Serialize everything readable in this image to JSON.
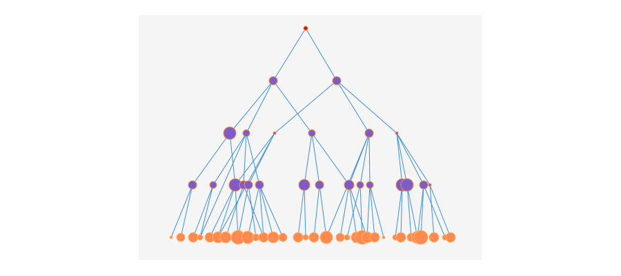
{
  "colors": {
    "background": "#ffffff",
    "panel": "#f5f5f5",
    "link": "#3b8fdb",
    "root_fill": "#c81e00",
    "root_stroke": "#ff8a3d",
    "inner_fill": "#7c5cc9",
    "inner_stroke": "#ff8a3d",
    "leaf_fill": "#ff8a50",
    "leaf_stroke": "#ffb36b"
  },
  "tree": {
    "levels": 5,
    "nodes": [
      {
        "id": "r",
        "level": 0,
        "rank": 0,
        "size": 3,
        "kind": "root"
      },
      {
        "id": "a1",
        "level": 1,
        "rank": 0,
        "size": 6,
        "kind": "inner",
        "parents": [
          "r"
        ]
      },
      {
        "id": "a2",
        "level": 1,
        "rank": 1,
        "size": 6,
        "kind": "inner",
        "parents": [
          "r"
        ]
      },
      {
        "id": "b1",
        "level": 2,
        "rank": 0,
        "size": 9,
        "kind": "inner",
        "parents": [
          "a1"
        ]
      },
      {
        "id": "b2",
        "level": 2,
        "rank": 1,
        "size": 5,
        "kind": "inner",
        "parents": [
          "a1"
        ]
      },
      {
        "id": "b3",
        "level": 2,
        "rank": 2,
        "size": 2,
        "kind": "inner",
        "parents": [
          "a2"
        ]
      },
      {
        "id": "b4",
        "level": 2,
        "rank": 3,
        "size": 5,
        "kind": "inner",
        "parents": [
          "a1"
        ]
      },
      {
        "id": "b5",
        "level": 2,
        "rank": 4,
        "size": 6,
        "kind": "inner",
        "parents": [
          "a2"
        ]
      },
      {
        "id": "b6",
        "level": 2,
        "rank": 5,
        "size": 2,
        "kind": "inner",
        "parents": [
          "a2"
        ]
      },
      {
        "id": "c1",
        "level": 3,
        "rank": 0,
        "size": 6,
        "kind": "inner",
        "parents": [
          "b1"
        ]
      },
      {
        "id": "c2",
        "level": 3,
        "rank": 1,
        "size": 5,
        "kind": "inner",
        "parents": [
          "b2"
        ]
      },
      {
        "id": "c3",
        "level": 3,
        "rank": 2,
        "size": 9,
        "kind": "inner",
        "parents": [
          "b1",
          "b3"
        ]
      },
      {
        "id": "c4",
        "level": 3,
        "rank": 3,
        "size": 6,
        "kind": "inner",
        "parents": [
          "b2"
        ]
      },
      {
        "id": "c5",
        "level": 3,
        "rank": 4,
        "size": 6,
        "kind": "inner",
        "parents": [
          "b3"
        ]
      },
      {
        "id": "c6",
        "level": 3,
        "rank": 5,
        "size": 6,
        "kind": "inner",
        "parents": [
          "b2"
        ]
      },
      {
        "id": "c7",
        "level": 3,
        "rank": 6,
        "size": 8,
        "kind": "inner",
        "parents": [
          "b4"
        ]
      },
      {
        "id": "c8",
        "level": 3,
        "rank": 7,
        "size": 6,
        "kind": "inner",
        "parents": [
          "b4"
        ]
      },
      {
        "id": "c9",
        "level": 3,
        "rank": 8,
        "size": 7,
        "kind": "inner",
        "parents": [
          "b5",
          "b4"
        ]
      },
      {
        "id": "c10",
        "level": 3,
        "rank": 9,
        "size": 5,
        "kind": "inner",
        "parents": [
          "b5"
        ]
      },
      {
        "id": "c11",
        "level": 3,
        "rank": 10,
        "size": 5,
        "kind": "inner",
        "parents": [
          "b5"
        ]
      },
      {
        "id": "c12",
        "level": 3,
        "rank": 11,
        "size": 9,
        "kind": "inner",
        "parents": [
          "b6"
        ]
      },
      {
        "id": "c13",
        "level": 3,
        "rank": 12,
        "size": 9,
        "kind": "inner",
        "parents": [
          "b6"
        ]
      },
      {
        "id": "c14",
        "level": 3,
        "rank": 13,
        "size": 6,
        "kind": "inner",
        "parents": [
          "b6"
        ]
      },
      {
        "id": "c15",
        "level": 3,
        "rank": 14,
        "size": 2,
        "kind": "inner",
        "parents": [
          "b6"
        ]
      },
      {
        "id": "d1",
        "level": 4,
        "rank": 0,
        "size": 2,
        "kind": "leaf",
        "parents": [
          "c1"
        ]
      },
      {
        "id": "d2",
        "level": 4,
        "rank": 1,
        "size": 6,
        "kind": "leaf",
        "parents": [
          "c1"
        ]
      },
      {
        "id": "d3",
        "level": 4,
        "rank": 2,
        "size": 7,
        "kind": "leaf",
        "parents": [
          "c2"
        ]
      },
      {
        "id": "d4",
        "level": 4,
        "rank": 3,
        "size": 4,
        "kind": "leaf",
        "parents": [
          "c2",
          "b2"
        ]
      },
      {
        "id": "d5",
        "level": 4,
        "rank": 4,
        "size": 7,
        "kind": "leaf",
        "parents": [
          "c3"
        ]
      },
      {
        "id": "d6",
        "level": 4,
        "rank": 5,
        "size": 8,
        "kind": "leaf",
        "parents": [
          "c3",
          "b3"
        ]
      },
      {
        "id": "d7",
        "level": 4,
        "rank": 6,
        "size": 8,
        "kind": "leaf",
        "parents": [
          "c4"
        ]
      },
      {
        "id": "d8",
        "level": 4,
        "rank": 7,
        "size": 10,
        "kind": "leaf",
        "parents": [
          "c3",
          "c5"
        ]
      },
      {
        "id": "d9",
        "level": 4,
        "rank": 8,
        "size": 9,
        "kind": "leaf",
        "parents": [
          "c6"
        ]
      },
      {
        "id": "d10",
        "level": 4,
        "rank": 9,
        "size": 5,
        "kind": "leaf",
        "parents": [
          "c5"
        ]
      },
      {
        "id": "d11",
        "level": 4,
        "rank": 10,
        "size": 7,
        "kind": "leaf",
        "parents": [
          "c6",
          "c4"
        ]
      },
      {
        "id": "d12",
        "level": 4,
        "rank": 11,
        "size": 8,
        "kind": "leaf",
        "parents": [
          "c6"
        ]
      },
      {
        "id": "d13",
        "level": 4,
        "rank": 12,
        "size": 6,
        "kind": "leaf",
        "parents": [
          "c6"
        ]
      },
      {
        "id": "d14",
        "level": 4,
        "rank": 13,
        "size": 7,
        "kind": "leaf",
        "parents": [
          "c7"
        ]
      },
      {
        "id": "d15",
        "level": 4,
        "rank": 14,
        "size": 4,
        "kind": "leaf",
        "parents": [
          "c7"
        ]
      },
      {
        "id": "d16",
        "level": 4,
        "rank": 15,
        "size": 7,
        "kind": "leaf",
        "parents": [
          "c8"
        ]
      },
      {
        "id": "d17",
        "level": 4,
        "rank": 16,
        "size": 9,
        "kind": "leaf",
        "parents": [
          "c8",
          "b5"
        ]
      },
      {
        "id": "d18",
        "level": 4,
        "rank": 17,
        "size": 6,
        "kind": "leaf",
        "parents": [
          "c9"
        ]
      },
      {
        "id": "d19",
        "level": 4,
        "rank": 18,
        "size": 4,
        "kind": "leaf",
        "parents": [
          "c10"
        ]
      },
      {
        "id": "d20",
        "level": 4,
        "rank": 19,
        "size": 8,
        "kind": "leaf",
        "parents": [
          "c9"
        ]
      },
      {
        "id": "d21",
        "level": 4,
        "rank": 20,
        "size": 10,
        "kind": "leaf",
        "parents": [
          "c10"
        ]
      },
      {
        "id": "d22",
        "level": 4,
        "rank": 21,
        "size": 8,
        "kind": "leaf",
        "parents": [
          "c11",
          "c9"
        ]
      },
      {
        "id": "d23",
        "level": 4,
        "rank": 22,
        "size": 7,
        "kind": "leaf",
        "parents": [
          "c11"
        ]
      },
      {
        "id": "d24",
        "level": 4,
        "rank": 23,
        "size": 2,
        "kind": "leaf",
        "parents": [
          "c11"
        ]
      },
      {
        "id": "d25",
        "level": 4,
        "rank": 24,
        "size": 4,
        "kind": "leaf",
        "parents": [
          "c12"
        ]
      },
      {
        "id": "d26",
        "level": 4,
        "rank": 25,
        "size": 7,
        "kind": "leaf",
        "parents": [
          "c12"
        ]
      },
      {
        "id": "d27",
        "level": 4,
        "rank": 26,
        "size": 6,
        "kind": "leaf",
        "parents": [
          "c13"
        ]
      },
      {
        "id": "d28",
        "level": 4,
        "rank": 27,
        "size": 9,
        "kind": "leaf",
        "parents": [
          "c13",
          "c14"
        ]
      },
      {
        "id": "d29",
        "level": 4,
        "rank": 28,
        "size": 10,
        "kind": "leaf",
        "parents": [
          "c14"
        ]
      },
      {
        "id": "d30",
        "level": 4,
        "rank": 29,
        "size": 7,
        "kind": "leaf",
        "parents": [
          "c15"
        ]
      },
      {
        "id": "d31",
        "level": 4,
        "rank": 30,
        "size": 4,
        "kind": "leaf",
        "parents": [
          "c14"
        ]
      },
      {
        "id": "d32",
        "level": 4,
        "rank": 31,
        "size": 7,
        "kind": "leaf",
        "parents": [
          "c15"
        ]
      }
    ]
  }
}
